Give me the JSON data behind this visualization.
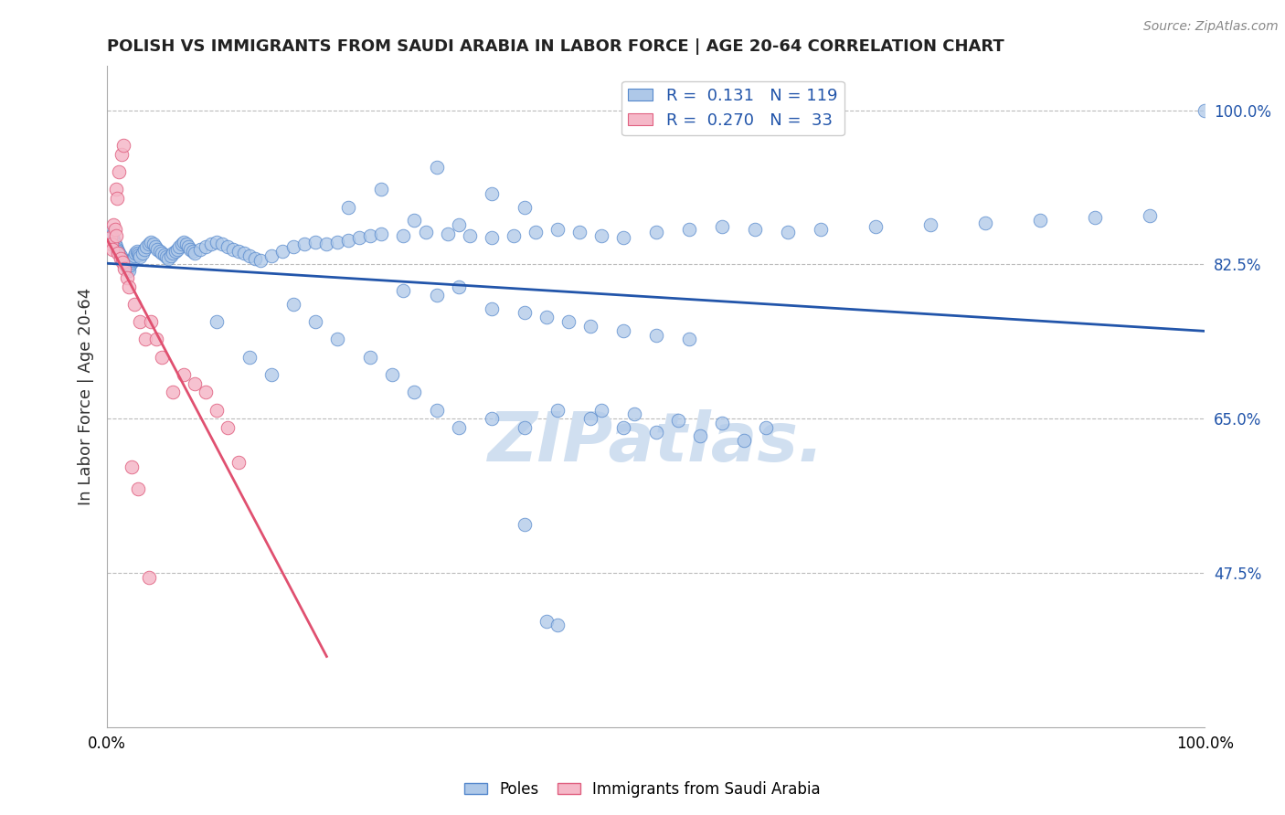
{
  "title": "POLISH VS IMMIGRANTS FROM SAUDI ARABIA IN LABOR FORCE | AGE 20-64 CORRELATION CHART",
  "source_text": "Source: ZipAtlas.com",
  "ylabel": "In Labor Force | Age 20-64",
  "xlim": [
    0,
    1.0
  ],
  "ylim": [
    0.3,
    1.05
  ],
  "yticks": [
    0.475,
    0.65,
    0.825,
    1.0
  ],
  "ytick_labels": [
    "47.5%",
    "65.0%",
    "82.5%",
    "100.0%"
  ],
  "xtick_positions": [
    0.0,
    0.25,
    0.5,
    0.75,
    1.0
  ],
  "xtick_labels": [
    "0.0%",
    "",
    "",
    "",
    "100.0%"
  ],
  "legend_box": {
    "blue_R": "0.131",
    "blue_N": "119",
    "pink_R": "0.270",
    "pink_N": "33"
  },
  "blue_fill": "#aec8e8",
  "blue_edge": "#5588cc",
  "pink_fill": "#f5b8c8",
  "pink_edge": "#e06080",
  "blue_line": "#2255aa",
  "pink_line": "#e05070",
  "watermark_color": "#d0dff0",
  "background_color": "#ffffff",
  "grid_color": "#bbbbbb",
  "title_color": "#222222",
  "poles_x": [
    0.003,
    0.004,
    0.005,
    0.006,
    0.007,
    0.008,
    0.009,
    0.01,
    0.011,
    0.012,
    0.013,
    0.014,
    0.015,
    0.016,
    0.017,
    0.018,
    0.019,
    0.02,
    0.021,
    0.022,
    0.023,
    0.024,
    0.025,
    0.026,
    0.027,
    0.028,
    0.029,
    0.03,
    0.032,
    0.034,
    0.036,
    0.038,
    0.04,
    0.042,
    0.044,
    0.046,
    0.048,
    0.05,
    0.052,
    0.054,
    0.056,
    0.058,
    0.06,
    0.062,
    0.064,
    0.066,
    0.068,
    0.07,
    0.072,
    0.074,
    0.076,
    0.078,
    0.08,
    0.085,
    0.09,
    0.095,
    0.1,
    0.105,
    0.11,
    0.115,
    0.12,
    0.125,
    0.13,
    0.135,
    0.14,
    0.15,
    0.16,
    0.17,
    0.18,
    0.19,
    0.2,
    0.21,
    0.22,
    0.23,
    0.24,
    0.25,
    0.27,
    0.29,
    0.31,
    0.33,
    0.35,
    0.37,
    0.39,
    0.41,
    0.43,
    0.45,
    0.47,
    0.5,
    0.53,
    0.56,
    0.59,
    0.62,
    0.65,
    0.7,
    0.75,
    0.8,
    0.85,
    0.9,
    0.95,
    1.0,
    0.1,
    0.13,
    0.15,
    0.17,
    0.19,
    0.21,
    0.24,
    0.26,
    0.28,
    0.3,
    0.32,
    0.35,
    0.38,
    0.41,
    0.44,
    0.47,
    0.5,
    0.54,
    0.58
  ],
  "poles_y": [
    0.862,
    0.858,
    0.855,
    0.852,
    0.848,
    0.845,
    0.842,
    0.84,
    0.838,
    0.835,
    0.832,
    0.83,
    0.828,
    0.826,
    0.824,
    0.822,
    0.82,
    0.818,
    0.824,
    0.828,
    0.83,
    0.832,
    0.835,
    0.838,
    0.84,
    0.838,
    0.836,
    0.834,
    0.838,
    0.842,
    0.845,
    0.848,
    0.85,
    0.848,
    0.845,
    0.842,
    0.84,
    0.838,
    0.836,
    0.834,
    0.832,
    0.835,
    0.838,
    0.84,
    0.842,
    0.845,
    0.848,
    0.85,
    0.848,
    0.845,
    0.842,
    0.84,
    0.838,
    0.842,
    0.845,
    0.848,
    0.85,
    0.848,
    0.845,
    0.842,
    0.84,
    0.838,
    0.835,
    0.832,
    0.83,
    0.835,
    0.84,
    0.845,
    0.848,
    0.85,
    0.848,
    0.85,
    0.852,
    0.855,
    0.858,
    0.86,
    0.858,
    0.862,
    0.86,
    0.858,
    0.855,
    0.858,
    0.862,
    0.865,
    0.862,
    0.858,
    0.855,
    0.862,
    0.865,
    0.868,
    0.865,
    0.862,
    0.865,
    0.868,
    0.87,
    0.872,
    0.875,
    0.878,
    0.88,
    1.0,
    0.76,
    0.72,
    0.7,
    0.78,
    0.76,
    0.74,
    0.72,
    0.7,
    0.68,
    0.66,
    0.64,
    0.65,
    0.64,
    0.66,
    0.65,
    0.64,
    0.635,
    0.63,
    0.625
  ],
  "saudi_x": [
    0.003,
    0.004,
    0.005,
    0.006,
    0.007,
    0.008,
    0.01,
    0.012,
    0.014,
    0.016,
    0.018,
    0.02,
    0.025,
    0.03,
    0.035,
    0.04,
    0.045,
    0.05,
    0.06,
    0.07,
    0.08,
    0.09,
    0.1,
    0.11,
    0.12,
    0.008,
    0.009,
    0.011,
    0.013,
    0.015,
    0.022,
    0.028,
    0.038
  ],
  "saudi_y": [
    0.855,
    0.848,
    0.842,
    0.87,
    0.865,
    0.858,
    0.838,
    0.832,
    0.828,
    0.82,
    0.81,
    0.8,
    0.78,
    0.76,
    0.74,
    0.76,
    0.74,
    0.72,
    0.68,
    0.7,
    0.69,
    0.68,
    0.66,
    0.64,
    0.6,
    0.91,
    0.9,
    0.93,
    0.95,
    0.96,
    0.595,
    0.57,
    0.47
  ],
  "extra_blue_scattered": [
    [
      0.25,
      0.91
    ],
    [
      0.3,
      0.935
    ],
    [
      0.35,
      0.905
    ],
    [
      0.38,
      0.89
    ],
    [
      0.22,
      0.89
    ],
    [
      0.28,
      0.875
    ],
    [
      0.32,
      0.87
    ],
    [
      0.27,
      0.795
    ],
    [
      0.3,
      0.79
    ],
    [
      0.32,
      0.8
    ],
    [
      0.35,
      0.775
    ],
    [
      0.38,
      0.77
    ],
    [
      0.4,
      0.765
    ],
    [
      0.42,
      0.76
    ],
    [
      0.44,
      0.755
    ],
    [
      0.47,
      0.75
    ],
    [
      0.5,
      0.745
    ],
    [
      0.53,
      0.74
    ],
    [
      0.45,
      0.66
    ],
    [
      0.48,
      0.655
    ],
    [
      0.52,
      0.648
    ],
    [
      0.56,
      0.645
    ],
    [
      0.6,
      0.64
    ],
    [
      0.38,
      0.53
    ],
    [
      0.4,
      0.42
    ],
    [
      0.41,
      0.416
    ]
  ]
}
